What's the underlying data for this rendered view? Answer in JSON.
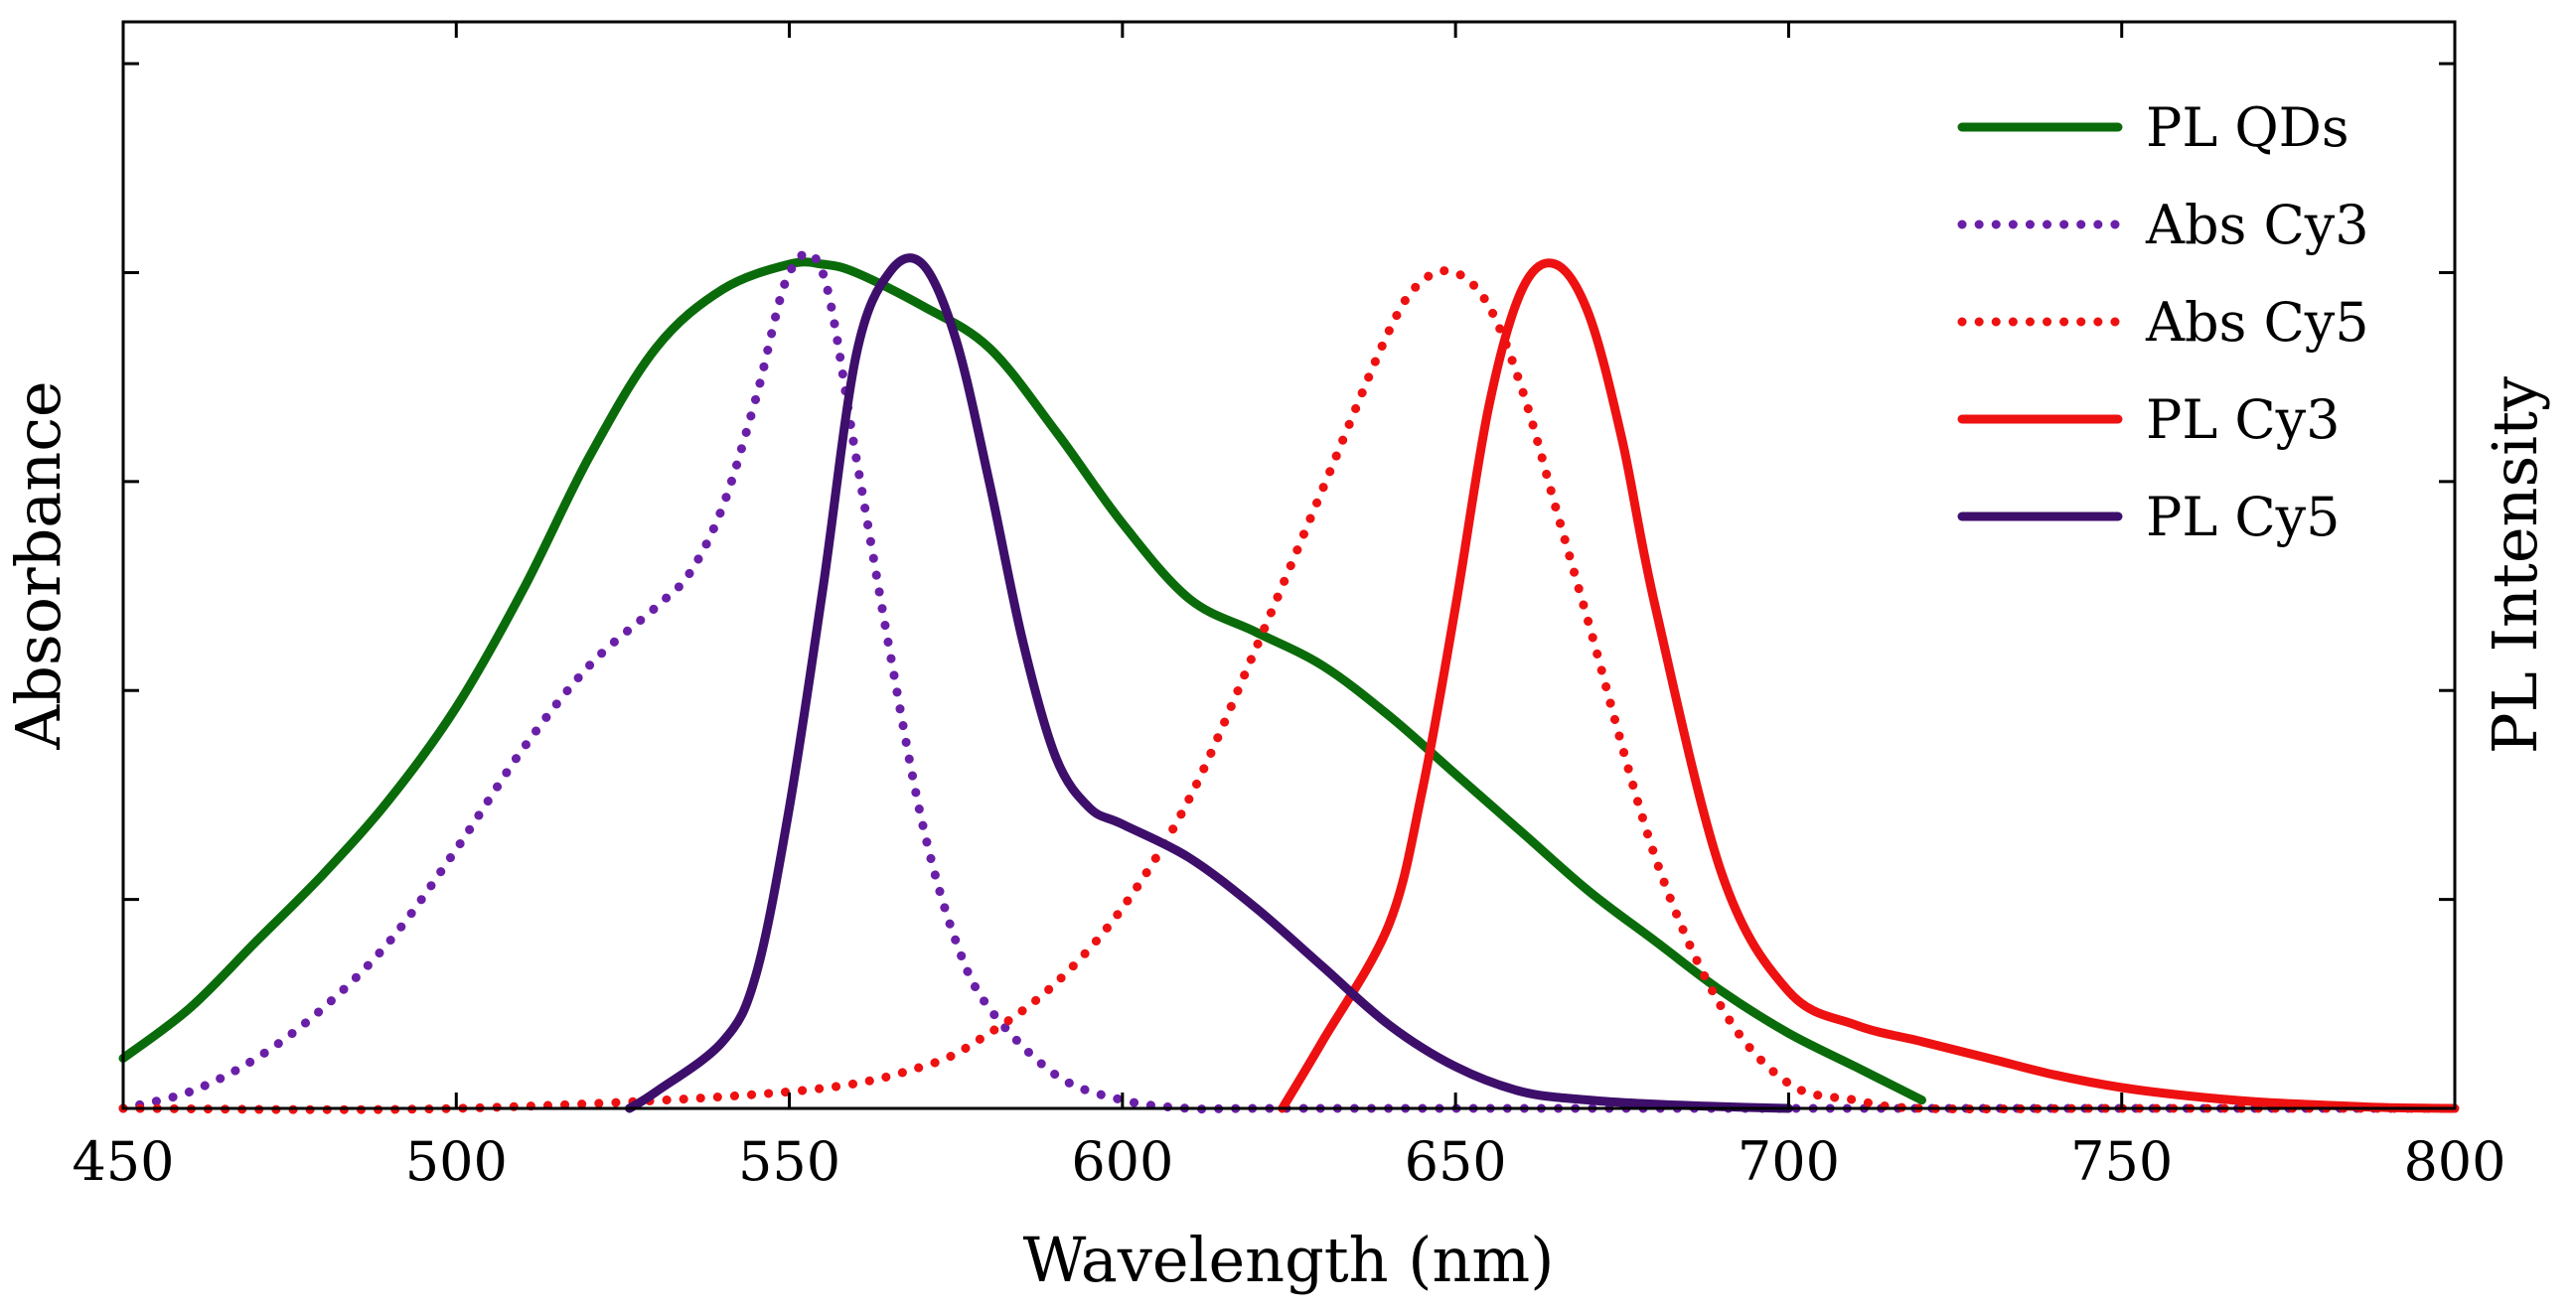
{
  "chart_data": {
    "type": "line",
    "title": "",
    "xlabel": "Wavelength (nm)",
    "ylabel_left": "Absorbance",
    "ylabel_right": "PL Intensity",
    "xlim": [
      450,
      800
    ],
    "ylim": [
      0,
      1.3
    ],
    "x_ticks": [
      450,
      500,
      550,
      600,
      650,
      700,
      750,
      800
    ],
    "x_tick_labels": [
      "450",
      "500",
      "550",
      "600",
      "650",
      "700",
      "750",
      "800"
    ],
    "y_ticks": [
      0.25,
      0.5,
      0.75,
      1.0,
      1.25
    ],
    "y_tick_labels_shown": false,
    "grid": false,
    "legend_position": "top-right",
    "series": [
      {
        "name": "PL QDs",
        "color": "#0a6b0a",
        "style": "solid",
        "x": [
          450,
          460,
          470,
          480,
          490,
          500,
          510,
          520,
          530,
          540,
          550,
          555,
          560,
          570,
          580,
          590,
          600,
          610,
          620,
          630,
          640,
          650,
          660,
          670,
          680,
          690,
          700,
          710,
          720
        ],
        "y": [
          0.06,
          0.12,
          0.2,
          0.28,
          0.37,
          0.48,
          0.62,
          0.78,
          0.91,
          0.98,
          1.01,
          1.01,
          1.0,
          0.96,
          0.91,
          0.81,
          0.7,
          0.61,
          0.57,
          0.53,
          0.47,
          0.4,
          0.33,
          0.26,
          0.2,
          0.14,
          0.09,
          0.05,
          0.01
        ]
      },
      {
        "name": "Abs Cy3",
        "color": "#6a1fa8",
        "style": "dotted",
        "x": [
          450,
          460,
          470,
          480,
          490,
          500,
          510,
          520,
          530,
          535,
          540,
          545,
          550,
          555,
          560,
          565,
          570,
          575,
          580,
          590,
          600,
          610,
          620,
          650,
          700,
          750,
          800
        ],
        "y": [
          0.0,
          0.02,
          0.06,
          0.12,
          0.2,
          0.31,
          0.43,
          0.53,
          0.6,
          0.64,
          0.72,
          0.85,
          1.0,
          1.0,
          0.78,
          0.55,
          0.34,
          0.2,
          0.12,
          0.04,
          0.01,
          0.0,
          0.0,
          0.0,
          0.0,
          0.0,
          0.0
        ]
      },
      {
        "name": "Abs Cy5",
        "color": "#ee1111",
        "style": "dotted",
        "x": [
          450,
          500,
          550,
          570,
          580,
          590,
          600,
          610,
          620,
          630,
          640,
          645,
          650,
          655,
          660,
          665,
          670,
          680,
          690,
          700,
          710,
          720,
          750,
          800
        ],
        "y": [
          0.0,
          0.0,
          0.02,
          0.05,
          0.09,
          0.15,
          0.24,
          0.37,
          0.55,
          0.74,
          0.93,
          0.99,
          1.0,
          0.96,
          0.86,
          0.72,
          0.58,
          0.3,
          0.12,
          0.03,
          0.01,
          0.0,
          0.0,
          0.0
        ]
      },
      {
        "name": "PL Cy3",
        "color": "#ee1111",
        "style": "solid",
        "x": [
          624,
          630,
          640,
          645,
          650,
          655,
          660,
          665,
          670,
          675,
          680,
          690,
          700,
          710,
          720,
          730,
          740,
          750,
          760,
          770,
          780,
          790,
          800
        ],
        "y": [
          0.0,
          0.08,
          0.22,
          0.38,
          0.6,
          0.84,
          0.98,
          1.01,
          0.95,
          0.8,
          0.6,
          0.28,
          0.14,
          0.1,
          0.08,
          0.06,
          0.04,
          0.025,
          0.015,
          0.008,
          0.004,
          0.001,
          0.0
        ]
      },
      {
        "name": "PL Cy5",
        "color": "#3d0f6b",
        "style": "solid",
        "x": [
          526,
          530,
          540,
          545,
          550,
          555,
          560,
          565,
          570,
          575,
          580,
          585,
          590,
          595,
          600,
          610,
          620,
          630,
          640,
          650,
          660,
          670,
          680,
          690,
          700
        ],
        "y": [
          0.0,
          0.02,
          0.08,
          0.16,
          0.36,
          0.62,
          0.9,
          1.0,
          1.01,
          0.92,
          0.75,
          0.56,
          0.42,
          0.36,
          0.34,
          0.3,
          0.24,
          0.17,
          0.1,
          0.05,
          0.02,
          0.01,
          0.005,
          0.002,
          0.0
        ]
      }
    ]
  }
}
